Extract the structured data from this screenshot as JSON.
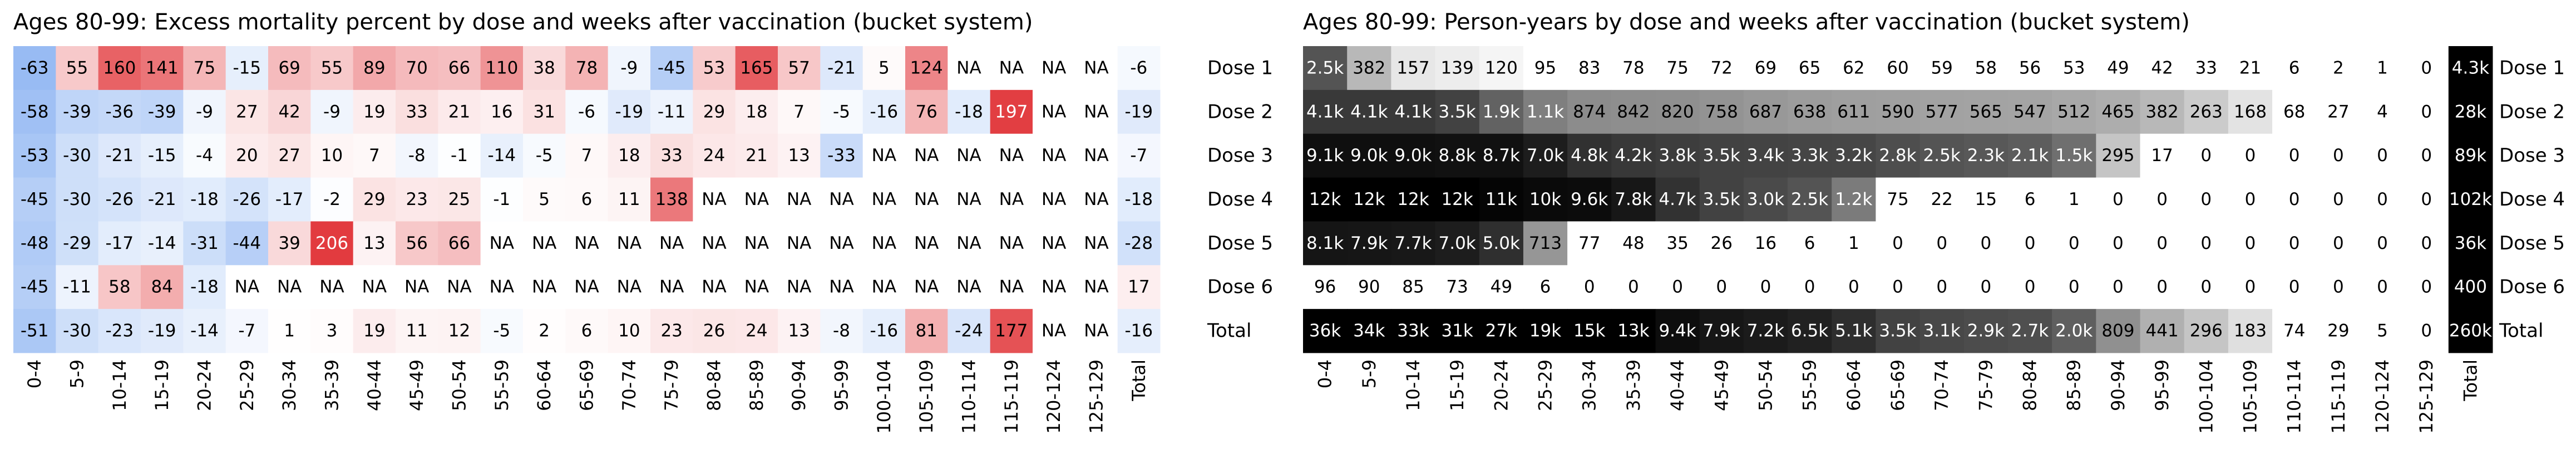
{
  "chart_data": [
    {
      "type": "heatmap",
      "title": "Ages 80-99: Excess mortality percent by dose and weeks after vaccination (bucket system)",
      "categories": [
        "0-4",
        "5-9",
        "10-14",
        "15-19",
        "20-24",
        "25-29",
        "30-34",
        "35-39",
        "40-44",
        "45-49",
        "50-54",
        "55-59",
        "60-64",
        "65-69",
        "70-74",
        "75-79",
        "80-84",
        "85-89",
        "90-94",
        "95-99",
        "100-104",
        "105-109",
        "110-114",
        "115-119",
        "120-124",
        "125-129",
        "Total"
      ],
      "missing_label": "NA",
      "colormap": {
        "scale": "linear",
        "clim": [
          -100,
          200
        ],
        "low": "#5b93ec",
        "mid": "#ffffff",
        "high": "#e23b3f"
      },
      "series": [
        {
          "name": "Dose 1",
          "values": [
            -63,
            55,
            160,
            141,
            75,
            -15,
            69,
            55,
            89,
            70,
            66,
            110,
            38,
            78,
            -9,
            -45,
            53,
            165,
            57,
            -21,
            5,
            124,
            null,
            null,
            null,
            null,
            -6
          ]
        },
        {
          "name": "Dose 2",
          "values": [
            -58,
            -39,
            -36,
            -39,
            -9,
            27,
            42,
            -9,
            19,
            33,
            21,
            16,
            31,
            -6,
            -19,
            -11,
            29,
            18,
            7,
            -5,
            -16,
            76,
            -18,
            197,
            null,
            null,
            -19
          ]
        },
        {
          "name": "Dose 3",
          "values": [
            -53,
            -30,
            -21,
            -15,
            -4,
            20,
            27,
            10,
            7,
            -8,
            -1,
            -14,
            -5,
            7,
            18,
            33,
            24,
            21,
            13,
            -33,
            null,
            null,
            null,
            null,
            null,
            null,
            -7
          ]
        },
        {
          "name": "Dose 4",
          "values": [
            -45,
            -30,
            -26,
            -21,
            -18,
            -26,
            -17,
            -2,
            29,
            23,
            25,
            -1,
            5,
            6,
            11,
            138,
            null,
            null,
            null,
            null,
            null,
            null,
            null,
            null,
            null,
            null,
            -18
          ]
        },
        {
          "name": "Dose 5",
          "values": [
            -48,
            -29,
            -17,
            -14,
            -31,
            -44,
            39,
            206,
            13,
            56,
            66,
            null,
            null,
            null,
            null,
            null,
            null,
            null,
            null,
            null,
            null,
            null,
            null,
            null,
            null,
            null,
            -28
          ]
        },
        {
          "name": "Dose 6",
          "values": [
            -45,
            -11,
            58,
            84,
            -18,
            null,
            null,
            null,
            null,
            null,
            null,
            null,
            null,
            null,
            null,
            null,
            null,
            null,
            null,
            null,
            null,
            null,
            null,
            null,
            null,
            null,
            17
          ]
        },
        {
          "name": "Total",
          "values": [
            -51,
            -30,
            -23,
            -19,
            -14,
            -7,
            1,
            3,
            19,
            11,
            12,
            -5,
            2,
            6,
            10,
            23,
            26,
            24,
            13,
            -8,
            -16,
            81,
            -24,
            177,
            null,
            null,
            -16
          ]
        }
      ]
    },
    {
      "type": "heatmap",
      "title": "Ages 80-99: Person-years by dose and weeks after vaccination (bucket system)",
      "categories": [
        "0-4",
        "5-9",
        "10-14",
        "15-19",
        "20-24",
        "25-29",
        "30-34",
        "35-39",
        "40-44",
        "45-49",
        "50-54",
        "55-59",
        "60-64",
        "65-69",
        "70-74",
        "75-79",
        "80-84",
        "85-89",
        "90-94",
        "95-99",
        "100-104",
        "105-109",
        "110-114",
        "115-119",
        "120-124",
        "125-129",
        "Total"
      ],
      "colormap": {
        "scale": "log",
        "clim": [
          100,
          12000
        ],
        "low": "#ffffff",
        "high": "#000000",
        "last_column": "#000000"
      },
      "series": [
        {
          "name": "Dose 1",
          "values": [
            2500,
            382,
            157,
            139,
            120,
            95,
            83,
            78,
            75,
            72,
            69,
            65,
            62,
            60,
            59,
            58,
            56,
            53,
            49,
            42,
            33,
            21,
            6,
            2,
            1,
            0,
            4300
          ],
          "value_labels": [
            "2.5k",
            "382",
            "157",
            "139",
            "120",
            "95",
            "83",
            "78",
            "75",
            "72",
            "69",
            "65",
            "62",
            "60",
            "59",
            "58",
            "56",
            "53",
            "49",
            "42",
            "33",
            "21",
            "6",
            "2",
            "1",
            "0",
            "4.3k"
          ]
        },
        {
          "name": "Dose 2",
          "values": [
            4100,
            4100,
            4100,
            3500,
            1900,
            1100,
            874,
            842,
            820,
            758,
            687,
            638,
            611,
            590,
            577,
            565,
            547,
            512,
            465,
            382,
            263,
            168,
            68,
            27,
            4,
            0,
            28000
          ],
          "value_labels": [
            "4.1k",
            "4.1k",
            "4.1k",
            "3.5k",
            "1.9k",
            "1.1k",
            "874",
            "842",
            "820",
            "758",
            "687",
            "638",
            "611",
            "590",
            "577",
            "565",
            "547",
            "512",
            "465",
            "382",
            "263",
            "168",
            "68",
            "27",
            "4",
            "0",
            "28k"
          ]
        },
        {
          "name": "Dose 3",
          "values": [
            9100,
            9000,
            9000,
            8800,
            8700,
            7000,
            4800,
            4200,
            3800,
            3500,
            3400,
            3300,
            3200,
            2800,
            2500,
            2300,
            2100,
            1500,
            295,
            17,
            0,
            0,
            0,
            0,
            0,
            0,
            89000
          ],
          "value_labels": [
            "9.1k",
            "9.0k",
            "9.0k",
            "8.8k",
            "8.7k",
            "7.0k",
            "4.8k",
            "4.2k",
            "3.8k",
            "3.5k",
            "3.4k",
            "3.3k",
            "3.2k",
            "2.8k",
            "2.5k",
            "2.3k",
            "2.1k",
            "1.5k",
            "295",
            "17",
            "0",
            "0",
            "0",
            "0",
            "0",
            "0",
            "89k"
          ]
        },
        {
          "name": "Dose 4",
          "values": [
            12000,
            12000,
            12000,
            12000,
            11000,
            10000,
            9600,
            7800,
            4700,
            3500,
            3000,
            2500,
            1200,
            75,
            22,
            15,
            6,
            1,
            0,
            0,
            0,
            0,
            0,
            0,
            0,
            0,
            102000
          ],
          "value_labels": [
            "12k",
            "12k",
            "12k",
            "12k",
            "11k",
            "10k",
            "9.6k",
            "7.8k",
            "4.7k",
            "3.5k",
            "3.0k",
            "2.5k",
            "1.2k",
            "75",
            "22",
            "15",
            "6",
            "1",
            "0",
            "0",
            "0",
            "0",
            "0",
            "0",
            "0",
            "0",
            "102k"
          ]
        },
        {
          "name": "Dose 5",
          "values": [
            8100,
            7900,
            7700,
            7000,
            5000,
            713,
            77,
            48,
            35,
            26,
            16,
            6,
            1,
            0,
            0,
            0,
            0,
            0,
            0,
            0,
            0,
            0,
            0,
            0,
            0,
            0,
            36000
          ],
          "value_labels": [
            "8.1k",
            "7.9k",
            "7.7k",
            "7.0k",
            "5.0k",
            "713",
            "77",
            "48",
            "35",
            "26",
            "16",
            "6",
            "1",
            "0",
            "0",
            "0",
            "0",
            "0",
            "0",
            "0",
            "0",
            "0",
            "0",
            "0",
            "0",
            "0",
            "36k"
          ]
        },
        {
          "name": "Dose 6",
          "values": [
            96,
            90,
            85,
            73,
            49,
            6,
            0,
            0,
            0,
            0,
            0,
            0,
            0,
            0,
            0,
            0,
            0,
            0,
            0,
            0,
            0,
            0,
            0,
            0,
            0,
            0,
            400
          ],
          "value_labels": [
            "96",
            "90",
            "85",
            "73",
            "49",
            "6",
            "0",
            "0",
            "0",
            "0",
            "0",
            "0",
            "0",
            "0",
            "0",
            "0",
            "0",
            "0",
            "0",
            "0",
            "0",
            "0",
            "0",
            "0",
            "0",
            "0",
            "400"
          ]
        },
        {
          "name": "Total",
          "values": [
            36000,
            34000,
            33000,
            31000,
            27000,
            19000,
            15000,
            13000,
            9400,
            7900,
            7200,
            6500,
            5100,
            3500,
            3100,
            2900,
            2700,
            2000,
            809,
            441,
            296,
            183,
            74,
            29,
            5,
            0,
            260000
          ],
          "value_labels": [
            "36k",
            "34k",
            "33k",
            "31k",
            "27k",
            "19k",
            "15k",
            "13k",
            "9.4k",
            "7.9k",
            "7.2k",
            "6.5k",
            "5.1k",
            "3.5k",
            "3.1k",
            "2.9k",
            "2.7k",
            "2.0k",
            "809",
            "441",
            "296",
            "183",
            "74",
            "29",
            "5",
            "0",
            "260k"
          ]
        }
      ]
    }
  ]
}
